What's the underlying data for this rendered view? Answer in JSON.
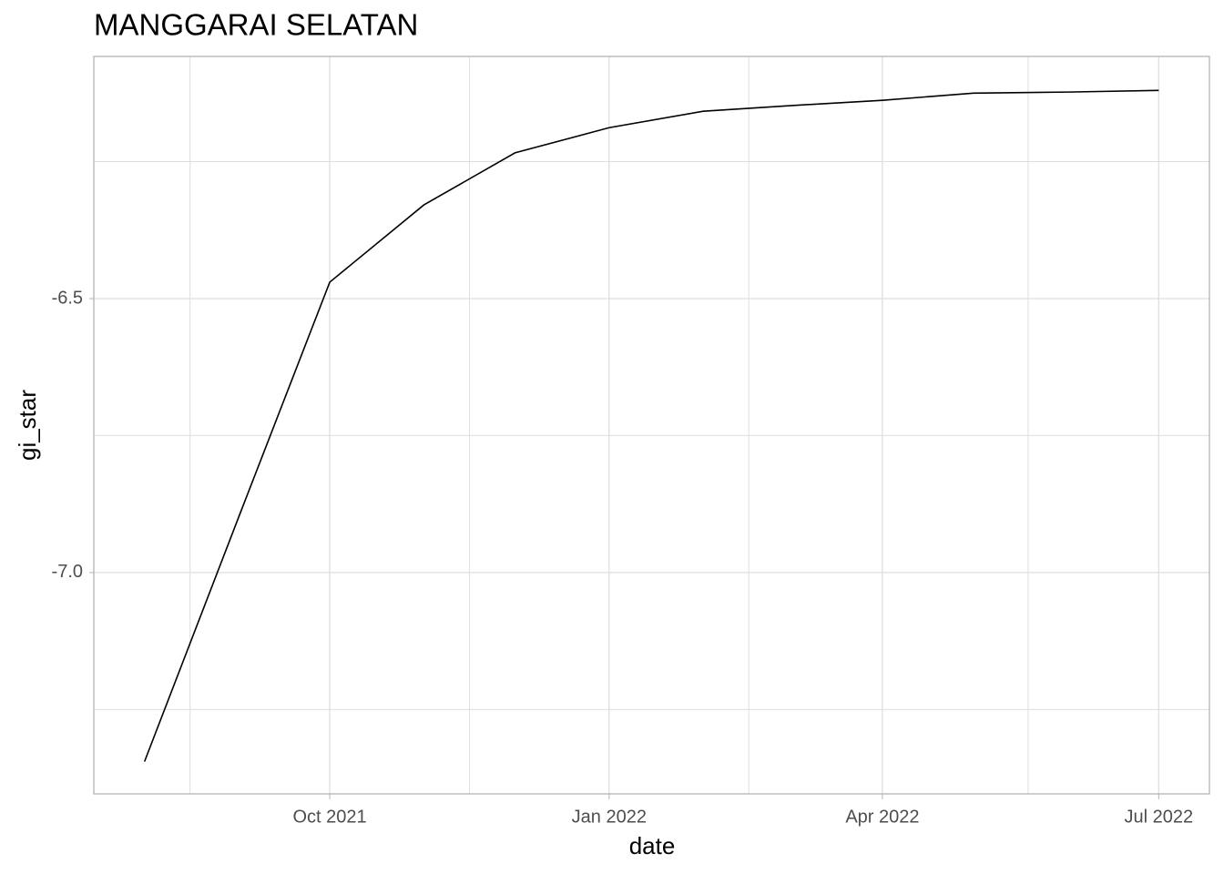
{
  "chart_data": {
    "type": "line",
    "title": "MANGGARAI SELATAN",
    "x_label": "date",
    "y_label": "gi_star",
    "x": [
      "2021-08",
      "2021-09",
      "2021-10",
      "2021-11",
      "2021-12",
      "2022-01",
      "2022-02",
      "2022-03",
      "2022-04",
      "2022-05",
      "2022-06",
      "2022-07"
    ],
    "series": [
      {
        "color": "#000000",
        "values": [
          -7.345,
          -6.899,
          -6.47,
          -6.329,
          -6.234,
          -6.188,
          -6.158,
          -6.148,
          -6.138,
          -6.125,
          -6.123,
          -6.12
        ]
      }
    ],
    "xticks": [
      {
        "value": "2021-10",
        "label": "Oct 2021"
      },
      {
        "value": "2022-01",
        "label": "Jan 2022"
      },
      {
        "value": "2022-04",
        "label": "Apr 2022"
      },
      {
        "value": "2022-07",
        "label": "Jul 2022"
      }
    ],
    "ylim": [
      -7.404,
      -6.058
    ],
    "yticks": [
      -6.5,
      {
        "value": -7,
        "label": "-7.0"
      }
    ],
    "grid": true
  }
}
